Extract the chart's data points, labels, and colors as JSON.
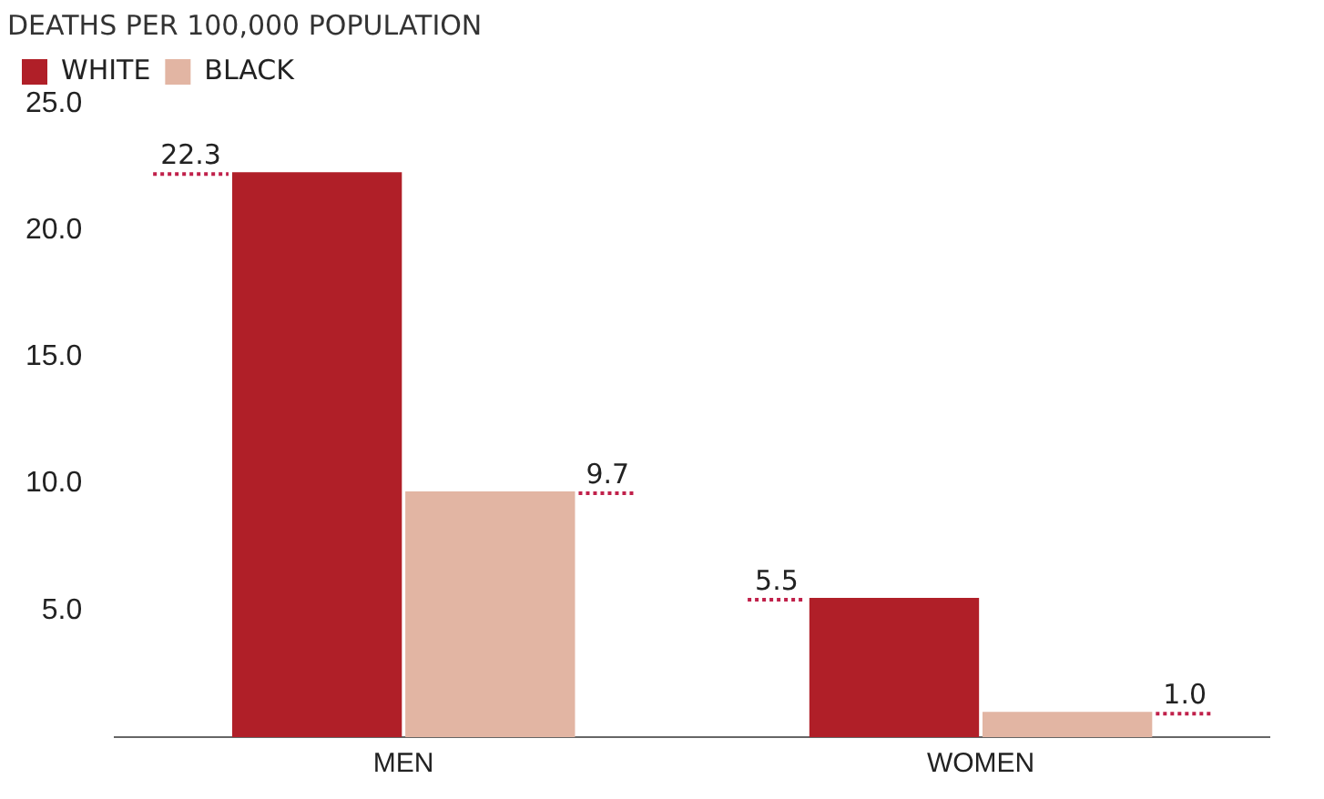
{
  "chart_data": {
    "type": "bar",
    "title": "DEATHS PER 100,000 POPULATION",
    "categories": [
      "MEN",
      "WOMEN"
    ],
    "series": [
      {
        "name": "WHITE",
        "color": "#b01f28",
        "values": [
          22.3,
          5.5
        ],
        "value_labels": [
          "22.3",
          "5.5"
        ]
      },
      {
        "name": "BLACK",
        "color": "#e2b5a3",
        "values": [
          9.7,
          1.0
        ],
        "value_labels": [
          "9.7",
          "1.0"
        ]
      }
    ],
    "ylim": [
      0,
      25
    ],
    "yticks": [
      {
        "value": 0,
        "label": null
      },
      {
        "value": 5,
        "label": "5.0"
      },
      {
        "value": 10,
        "label": "10.0"
      },
      {
        "value": 15,
        "label": "15.0"
      },
      {
        "value": 20,
        "label": "20.0"
      },
      {
        "value": 25,
        "label": "25.0"
      }
    ],
    "grid": false,
    "legend": "top left"
  }
}
